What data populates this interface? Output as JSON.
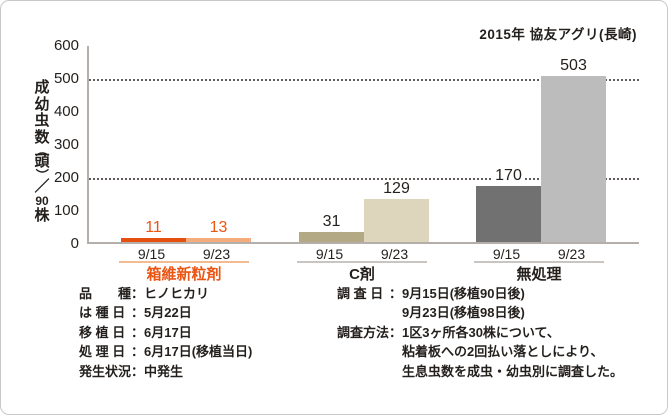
{
  "title": "2015年 協友アグリ(長崎)",
  "chart_data": {
    "type": "bar",
    "title": "2015年 協友アグリ(長崎)",
    "ylabel": "成幼虫数（頭）／90株",
    "ylabel_chars": [
      "成",
      "幼",
      "虫",
      "数",
      "（",
      "頭",
      "）",
      "／",
      "90",
      "株"
    ],
    "xlabel": "",
    "ylim": [
      0,
      600
    ],
    "yticks": [
      600,
      500,
      400,
      300,
      200,
      100,
      0
    ],
    "gridlines_at": [
      500,
      200
    ],
    "grid_style": "dotted",
    "legend": "none",
    "categories": [
      "9/15",
      "9/23"
    ],
    "groups": [
      {
        "name": "箱維新粒剤",
        "values": [
          11,
          13
        ],
        "bar_colors": [
          "#e5500e",
          "#f4ac7c"
        ],
        "value_color": "#ea5514",
        "name_color": "#ea5514",
        "date_color": "#231f1c",
        "underline_color": "#f3bb92"
      },
      {
        "name": "C剤",
        "values": [
          31,
          129
        ],
        "bar_colors": [
          "#b3a985",
          "#ddd6bc"
        ],
        "value_color": "#231f1c",
        "name_color": "#231f1c",
        "date_color": "#231f1c",
        "underline_color": "#c9c5c2"
      },
      {
        "name": "無処理",
        "values": [
          170,
          503
        ],
        "bar_colors": [
          "#717171",
          "#bcbcbc"
        ],
        "value_color": "#231f1c",
        "name_color": "#231f1c",
        "date_color": "#231f1c",
        "underline_color": "#c9c5c2"
      }
    ]
  },
  "info_colon": "：",
  "info_left": {
    "rows": [
      {
        "label": "品　　種",
        "value": "ヒノヒカリ"
      },
      {
        "label": "は 種 日",
        "value": "5月22日"
      },
      {
        "label": "移 植 日",
        "value": "6月17日"
      },
      {
        "label": "処 理 日",
        "value": "6月17日(移植当日)"
      },
      {
        "label": "発生状況",
        "value": "中発生"
      }
    ]
  },
  "info_right": {
    "rows": [
      {
        "label": "調 査 日",
        "value": "9月15日(移植90日後)"
      },
      {
        "label": "",
        "value": "9月23日(移植98日後)"
      },
      {
        "label": "調査方法",
        "value": "1区3ヶ所各30株について、"
      },
      {
        "label": "",
        "value": "粘着板への2回払い落としにより、"
      },
      {
        "label": "",
        "value": "生息虫数を成虫・幼虫別に調査した。"
      }
    ]
  },
  "colors": {
    "background": "#ffffff",
    "frame_border": "#c9c9c9",
    "axis": "#b5afab",
    "gridline": "#615c59",
    "text": "#231f1c",
    "accent_orange": "#ea5514"
  }
}
